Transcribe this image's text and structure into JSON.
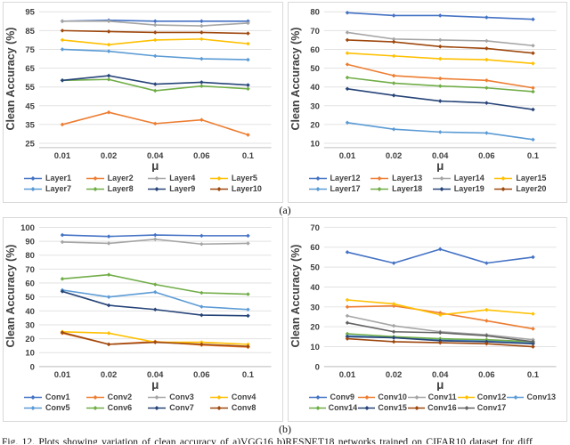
{
  "figure": {
    "panel_a_label": "(a)",
    "panel_b_label": "(b)",
    "caption": "Fig. 12. Plots showing variation of clean accuracy of a)VGG16 b)RESNET18 networks trained on CIFAR10 dataset for diff"
  },
  "colors": {
    "blue": "#4472C4",
    "orange": "#ED7D31",
    "gray": "#A5A5A5",
    "yellow": "#FFC000",
    "light_blue": "#5B9BD5",
    "green": "#70AD47",
    "navy": "#264478",
    "dark_brown": "#9E480E",
    "dark_gray": "#636363",
    "gridline": "#E2E2E2",
    "axis_line": "#BFBFBF",
    "axis_text": "#404040"
  },
  "chart_data": [
    {
      "type": "line",
      "position": "top-left",
      "title": "",
      "xlabel": "μ",
      "ylabel": "Clean Accuracy (%)",
      "x": [
        "0.01",
        "0.02",
        "0.04",
        "0.06",
        "0.1"
      ],
      "yticks": [
        25,
        35,
        45,
        55,
        65,
        75,
        85,
        95
      ],
      "ylim": [
        22.7,
        96
      ],
      "grid": "horizontal",
      "legend_position": "bottom",
      "legend_cols": 4,
      "series": [
        {
          "name": "Layer1",
          "color": "#4472C4",
          "values": [
            90,
            90.5,
            90,
            90,
            90
          ]
        },
        {
          "name": "Layer2",
          "color": "#ED7D31",
          "values": [
            35,
            41.5,
            35.5,
            37.5,
            29.5
          ]
        },
        {
          "name": "Layer4",
          "color": "#A5A5A5",
          "values": [
            90,
            90,
            88,
            87.5,
            89
          ]
        },
        {
          "name": "Layer5",
          "color": "#FFC000",
          "values": [
            80,
            77.5,
            80,
            80.5,
            78
          ]
        },
        {
          "name": "Layer7",
          "color": "#5B9BD5",
          "values": [
            75,
            74,
            71.5,
            70,
            69.5
          ]
        },
        {
          "name": "Layer8",
          "color": "#70AD47",
          "values": [
            58.5,
            59,
            53,
            55.5,
            54
          ]
        },
        {
          "name": "Layer9",
          "color": "#264478",
          "values": [
            58.5,
            61,
            56.5,
            57.5,
            56
          ]
        },
        {
          "name": "Layer10",
          "color": "#9E480E",
          "values": [
            85,
            84.5,
            84,
            84,
            83.5
          ]
        }
      ]
    },
    {
      "type": "line",
      "position": "top-right",
      "title": "",
      "xlabel": "μ",
      "ylabel": "Clean Accuracy (%)",
      "x": [
        "0.01",
        "0.02",
        "0.04",
        "0.06",
        "0.1"
      ],
      "yticks": [
        10,
        20,
        30,
        40,
        50,
        60,
        70,
        80
      ],
      "ylim": [
        7.7,
        81
      ],
      "grid": "horizontal",
      "legend_position": "bottom",
      "legend_cols": 4,
      "series": [
        {
          "name": "Layer12",
          "color": "#4472C4",
          "values": [
            79.5,
            78,
            78,
            77,
            76
          ]
        },
        {
          "name": "Layer13",
          "color": "#ED7D31",
          "values": [
            52,
            46,
            44.5,
            43.5,
            39.5
          ]
        },
        {
          "name": "Layer14",
          "color": "#A5A5A5",
          "values": [
            69,
            65.5,
            65,
            64.5,
            62
          ]
        },
        {
          "name": "Layer15",
          "color": "#FFC000",
          "values": [
            58,
            56.5,
            55,
            54.5,
            52.5
          ]
        },
        {
          "name": "Layer17",
          "color": "#5B9BD5",
          "values": [
            21,
            17.5,
            16,
            15.5,
            12
          ]
        },
        {
          "name": "Layer18",
          "color": "#70AD47",
          "values": [
            45,
            42,
            40.5,
            39.5,
            37.5
          ]
        },
        {
          "name": "Layer19",
          "color": "#264478",
          "values": [
            39,
            35.5,
            32.5,
            31.5,
            28
          ]
        },
        {
          "name": "Layer20",
          "color": "#9E480E",
          "values": [
            65,
            64,
            61.5,
            60.5,
            58
          ]
        }
      ]
    },
    {
      "type": "line",
      "position": "bottom-left",
      "title": "",
      "xlabel": "μ",
      "ylabel": "Clean Accuracy (%)",
      "x": [
        "0.01",
        "0.02",
        "0.04",
        "0.06",
        "0.1"
      ],
      "yticks": [
        0,
        10,
        20,
        30,
        40,
        50,
        60,
        70,
        80,
        90,
        100
      ],
      "ylim": [
        0,
        101.5
      ],
      "grid": "horizontal",
      "legend_position": "bottom",
      "legend_cols": 4,
      "series": [
        {
          "name": "Conv1",
          "color": "#4472C4",
          "values": [
            94.5,
            93.5,
            94.5,
            94,
            94
          ]
        },
        {
          "name": "Conv2",
          "color": "#ED7D31",
          "values": [
            24,
            16,
            18,
            15.5,
            14
          ]
        },
        {
          "name": "Conv3",
          "color": "#A5A5A5",
          "values": [
            89.5,
            88.5,
            91.5,
            88,
            88.5
          ]
        },
        {
          "name": "Conv4",
          "color": "#FFC000",
          "values": [
            25,
            24,
            17.5,
            17.5,
            16
          ]
        },
        {
          "name": "Conv5",
          "color": "#5B9BD5",
          "values": [
            55,
            50,
            53.5,
            43,
            41
          ]
        },
        {
          "name": "Conv6",
          "color": "#70AD47",
          "values": [
            63,
            66,
            59,
            53,
            52
          ]
        },
        {
          "name": "Conv7",
          "color": "#264478",
          "values": [
            54,
            44,
            41,
            37,
            36.5
          ]
        },
        {
          "name": "Conv8",
          "color": "#9E480E",
          "values": [
            24.5,
            16,
            17.5,
            16,
            14.5
          ]
        }
      ]
    },
    {
      "type": "line",
      "position": "bottom-right",
      "title": "",
      "xlabel": "μ",
      "ylabel": "Clean Accuracy (%)",
      "x": [
        "0.01",
        "0.02",
        "0.04",
        "0.06",
        "0.1"
      ],
      "yticks": [
        0,
        10,
        20,
        30,
        40,
        50,
        60,
        70
      ],
      "ylim": [
        0,
        71
      ],
      "grid": "horizontal",
      "legend_position": "bottom",
      "legend_cols": 5,
      "series": [
        {
          "name": "Conv9",
          "color": "#4472C4",
          "values": [
            57.5,
            52,
            59,
            52,
            55
          ]
        },
        {
          "name": "Conv10",
          "color": "#ED7D31",
          "values": [
            30,
            30.5,
            27,
            23,
            19
          ]
        },
        {
          "name": "Conv11",
          "color": "#A5A5A5",
          "values": [
            25.5,
            20.5,
            17.5,
            16,
            13.5
          ]
        },
        {
          "name": "Conv12",
          "color": "#FFC000",
          "values": [
            33.5,
            31.5,
            26,
            28.5,
            26.5
          ]
        },
        {
          "name": "Conv13",
          "color": "#5B9BD5",
          "values": [
            15.5,
            14.5,
            13.5,
            13,
            12
          ]
        },
        {
          "name": "Conv14",
          "color": "#70AD47",
          "values": [
            16.5,
            15,
            14,
            13.5,
            12.5
          ]
        },
        {
          "name": "Conv15",
          "color": "#264478",
          "values": [
            15,
            14.5,
            13,
            12.5,
            11.5
          ]
        },
        {
          "name": "Conv16",
          "color": "#9E480E",
          "values": [
            14,
            12.5,
            12,
            11.5,
            10
          ]
        },
        {
          "name": "Conv17",
          "color": "#636363",
          "values": [
            22,
            17.5,
            17,
            15.5,
            12.5
          ]
        }
      ]
    }
  ]
}
